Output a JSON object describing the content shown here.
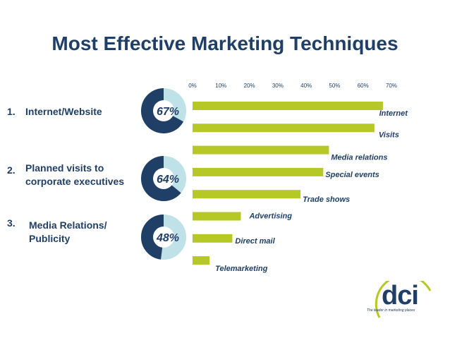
{
  "title": "Most Effective Marketing Techniques",
  "ranked": [
    {
      "num": "1.",
      "label_lines": [
        "Internet/Website"
      ],
      "donut_pct": 67,
      "donut_label": "67%"
    },
    {
      "num": "2.",
      "label_lines": [
        "Planned visits to",
        "corporate executives"
      ],
      "donut_pct": 64,
      "donut_label": "64%"
    },
    {
      "num": "3.",
      "label_lines": [
        "Media Relations/",
        "Publicity"
      ],
      "donut_pct": 48,
      "donut_label": "48%"
    }
  ],
  "colors": {
    "bar": "#b5c826",
    "navy": "#1f3f66",
    "donut_light": "#bfe1e8",
    "logo_ring": "#b5c826"
  },
  "logo": {
    "name": "dci",
    "tagline": "The leader in marketing places"
  },
  "chart_data": {
    "type": "bar",
    "orientation": "horizontal",
    "title": "Most Effective Marketing Techniques",
    "categories": [
      "Internet",
      "Visits",
      "Media relations",
      "Special events",
      "Trade shows",
      "Advertising",
      "Direct mail",
      "Telemarketing"
    ],
    "values": [
      67,
      64,
      48,
      46,
      38,
      17,
      14,
      6
    ],
    "x_ticks": [
      "0%",
      "10%",
      "20%",
      "30%",
      "40%",
      "50%",
      "60%",
      "70%"
    ],
    "xlim": [
      0,
      70
    ],
    "grid": false,
    "legend": "none"
  }
}
